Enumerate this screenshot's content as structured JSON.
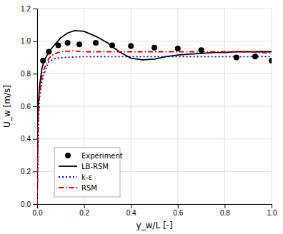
{
  "chart_data": {
    "type": "line",
    "xlabel": "y_w/L [-]",
    "ylabel": "U_w [m/s]",
    "xlim": [
      0.0,
      1.0
    ],
    "ylim": [
      0.0,
      1.2
    ],
    "xticks": [
      {
        "value": 0.0,
        "label": "0.0"
      },
      0.2,
      0.4,
      0.6,
      0.8,
      {
        "value": 1.0,
        "label": "1.0"
      }
    ],
    "yticks": [
      {
        "value": 0.0,
        "label": "0.0"
      },
      0.2,
      0.4,
      0.6,
      0.8,
      {
        "value": 1.0,
        "label": "1.0"
      },
      1.2
    ],
    "grid": true,
    "legend": "lower left",
    "series": [
      {
        "name": "Experiment",
        "type": "scatter",
        "marker": "circle",
        "color": "#000000",
        "x": [
          0.025,
          0.05,
          0.09,
          0.13,
          0.18,
          0.25,
          0.32,
          0.4,
          0.5,
          0.6,
          0.7,
          0.85,
          0.93,
          1.0
        ],
        "values": [
          0.88,
          0.935,
          0.975,
          0.99,
          0.98,
          0.99,
          0.975,
          0.97,
          0.96,
          0.955,
          0.945,
          0.9,
          0.905,
          0.88
        ]
      },
      {
        "name": "LB-RSM",
        "type": "line",
        "line_style": "solid",
        "color": "#000000",
        "x": [
          0.0,
          0.005,
          0.01,
          0.02,
          0.03,
          0.05,
          0.07,
          0.1,
          0.13,
          0.16,
          0.2,
          0.25,
          0.3,
          0.35,
          0.4,
          0.45,
          0.5,
          0.55,
          0.6,
          0.65,
          0.7,
          0.75,
          0.8,
          0.85,
          0.9,
          0.95,
          1.0
        ],
        "values": [
          0.47,
          0.62,
          0.72,
          0.83,
          0.88,
          0.935,
          0.97,
          1.02,
          1.05,
          1.065,
          1.06,
          1.03,
          0.99,
          0.935,
          0.895,
          0.885,
          0.89,
          0.905,
          0.915,
          0.92,
          0.925,
          0.93,
          0.93,
          0.935,
          0.935,
          0.935,
          0.935
        ]
      },
      {
        "name": "k-ε",
        "type": "line",
        "line_style": "dotted",
        "color": "#0000cc",
        "x": [
          0.0,
          0.005,
          0.01,
          0.02,
          0.03,
          0.05,
          0.08,
          0.12,
          0.2,
          0.3,
          0.4,
          0.5,
          0.6,
          0.7,
          0.8,
          0.9,
          1.0
        ],
        "values": [
          0.0,
          0.5,
          0.65,
          0.75,
          0.8,
          0.875,
          0.895,
          0.9,
          0.905,
          0.905,
          0.905,
          0.905,
          0.905,
          0.905,
          0.905,
          0.905,
          0.905
        ]
      },
      {
        "name": "RSM",
        "type": "line",
        "line_style": "dashdot",
        "color": "#cc0000",
        "x": [
          0.0,
          0.005,
          0.01,
          0.02,
          0.03,
          0.05,
          0.07,
          0.1,
          0.15,
          0.2,
          0.3,
          0.4,
          0.5,
          0.6,
          0.7,
          0.8,
          0.9,
          1.0
        ],
        "values": [
          0.0,
          0.52,
          0.67,
          0.78,
          0.83,
          0.895,
          0.92,
          0.935,
          0.94,
          0.935,
          0.935,
          0.935,
          0.935,
          0.935,
          0.935,
          0.935,
          0.935,
          0.925
        ]
      }
    ]
  }
}
